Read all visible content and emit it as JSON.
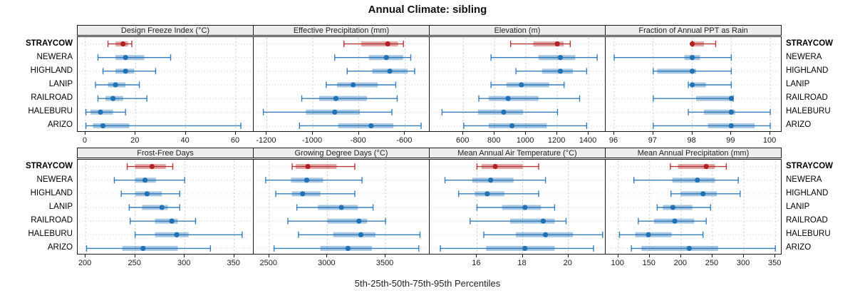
{
  "title": "Annual Climate: sibling",
  "caption": "5th-25th-50th-75th-95th Percentiles",
  "sites": [
    "STRAYCOW",
    "NEWERA",
    "HIGHLAND",
    "LANIP",
    "RAILROAD",
    "HALEBURU",
    "ARIZO"
  ],
  "highlight_site": "STRAYCOW",
  "colors": {
    "highlight": "#b22222",
    "normal": "#2171b5",
    "strip_bg": "#ededed",
    "panel_border": "#1a1a1a",
    "grid": "#c9c9c9"
  },
  "chart_data": {
    "type": "pointrange",
    "note": "each series values = [p5, p25, p50, p75, p95]",
    "legend_position": "none",
    "grid": true,
    "panels": [
      {
        "title": "Design Freeze Index (°C)",
        "xlim": [
          -3.1,
          67.1
        ],
        "ticks": [
          0,
          20,
          40,
          60
        ],
        "series": [
          {
            "name": "STRAYCOW",
            "values": [
              9,
              12,
              15,
              17,
              18.5
            ]
          },
          {
            "name": "NEWERA",
            "values": [
              5,
              12,
              16,
              23.5,
              34
            ]
          },
          {
            "name": "HIGHLAND",
            "values": [
              7,
              12,
              16,
              19.5,
              28
            ]
          },
          {
            "name": "LANIP",
            "values": [
              4,
              9,
              12,
              16,
              21.5
            ]
          },
          {
            "name": "RAILROAD",
            "values": [
              5,
              8,
              11,
              15,
              24.5
            ]
          },
          {
            "name": "HALEBURU",
            "values": [
              0.2,
              2,
              6,
              11,
              16
            ]
          },
          {
            "name": "ARIZO",
            "values": [
              0.2,
              3,
              7,
              17.5,
              62
            ]
          }
        ]
      },
      {
        "title": "Effective Precipitation (mm)",
        "xlim": [
          -1257,
          -493
        ],
        "ticks": [
          -1200,
          -1000,
          -800,
          -600
        ],
        "series": [
          {
            "name": "STRAYCOW",
            "values": [
              -865,
              -790,
              -675,
              -630,
              -607
            ]
          },
          {
            "name": "NEWERA",
            "values": [
              -905,
              -757,
              -681,
              -608,
              -575
            ]
          },
          {
            "name": "HIGHLAND",
            "values": [
              -851,
              -742,
              -666,
              -588,
              -558
            ]
          },
          {
            "name": "LANIP",
            "values": [
              -942,
              -895,
              -825,
              -718,
              -640
            ]
          },
          {
            "name": "RAILROAD",
            "values": [
              -1048,
              -973,
              -900,
              -765,
              -634
            ]
          },
          {
            "name": "HALEBURU",
            "values": [
              -1215,
              -1030,
              -905,
              -796,
              -657
            ]
          },
          {
            "name": "ARIZO",
            "values": [
              -1058,
              -890,
              -747,
              -650,
              -530
            ]
          }
        ]
      },
      {
        "title": "Elevation (m)",
        "xlim": [
          385,
          1509
        ],
        "ticks": [
          600,
          800,
          1000,
          1200,
          1400
        ],
        "series": [
          {
            "name": "STRAYCOW",
            "values": [
              902,
              1047,
              1200,
              1241,
              1283
            ]
          },
          {
            "name": "NEWERA",
            "values": [
              777,
              1080,
              1220,
              1315,
              1455
            ]
          },
          {
            "name": "HIGHLAND",
            "values": [
              936,
              1103,
              1220,
              1300,
              1388
            ]
          },
          {
            "name": "LANIP",
            "values": [
              777,
              876,
              971,
              1149,
              1244
            ]
          },
          {
            "name": "RAILROAD",
            "values": [
              699,
              762,
              886,
              1080,
              1343
            ]
          },
          {
            "name": "HALEBURU",
            "values": [
              464,
              694,
              858,
              982,
              1202
            ]
          },
          {
            "name": "ARIZO",
            "values": [
              603,
              762,
              911,
              1133,
              1388
            ]
          }
        ]
      },
      {
        "title": "Fraction of Annual PPT as Rain",
        "xlim": [
          95.78,
          100.29
        ],
        "ticks": [
          96,
          97,
          98,
          99,
          100
        ],
        "series": [
          {
            "name": "STRAYCOW",
            "values": [
              98,
              98,
              98,
              98.3,
              98.6
            ]
          },
          {
            "name": "NEWERA",
            "values": [
              96,
              97.8,
              98,
              98.2,
              99
            ]
          },
          {
            "name": "HIGHLAND",
            "values": [
              97,
              97.1,
              98,
              98.1,
              99
            ]
          },
          {
            "name": "LANIP",
            "values": [
              97.9,
              97.95,
              98,
              98.35,
              99
            ]
          },
          {
            "name": "RAILROAD",
            "values": [
              97,
              98.1,
              99,
              99.05,
              99.05
            ]
          },
          {
            "name": "HALEBURU",
            "values": [
              97.9,
              98.3,
              99,
              99.1,
              100
            ]
          },
          {
            "name": "ARIZO",
            "values": [
              97,
              98.4,
              99,
              99.6,
              100
            ]
          }
        ]
      },
      {
        "title": "Frost-Free Days",
        "xlim": [
          192,
          369.6
        ],
        "ticks": [
          200,
          250,
          300,
          350
        ],
        "series": [
          {
            "name": "STRAYCOW",
            "values": [
              242,
              250,
              267,
              281,
              288
            ]
          },
          {
            "name": "NEWERA",
            "values": [
              229,
              250,
              260,
              271,
              300
            ]
          },
          {
            "name": "HIGHLAND",
            "values": [
              236,
              250,
              262,
              277,
              295
            ]
          },
          {
            "name": "LANIP",
            "values": [
              244,
              257,
              277,
              283,
              295
            ]
          },
          {
            "name": "RAILROAD",
            "values": [
              245,
              270,
              287,
              293,
              311
            ]
          },
          {
            "name": "HALEBURU",
            "values": [
              250,
              270,
              292,
              304,
              358
            ]
          },
          {
            "name": "ARIZO",
            "values": [
              201,
              237,
              258,
              293,
              326
            ]
          }
        ]
      },
      {
        "title": "Growing Degree Days (°C)",
        "xlim": [
          2367,
          3879
        ],
        "ticks": [
          2500,
          3000,
          3500
        ],
        "series": [
          {
            "name": "STRAYCOW",
            "values": [
              2698,
              2728,
              2833,
              3080,
              3236
            ]
          },
          {
            "name": "NEWERA",
            "values": [
              2470,
              2688,
              2823,
              2964,
              3298
            ]
          },
          {
            "name": "HIGHLAND",
            "values": [
              2557,
              2694,
              2788,
              2940,
              3236
            ]
          },
          {
            "name": "LANIP",
            "values": [
              2738,
              2919,
              3121,
              3262,
              3393
            ]
          },
          {
            "name": "RAILROAD",
            "values": [
              2661,
              3000,
              3272,
              3343,
              3500
            ]
          },
          {
            "name": "HALEBURU",
            "values": [
              2752,
              3050,
              3288,
              3413,
              3796
            ]
          },
          {
            "name": "ARIZO",
            "values": [
              2542,
              2940,
              3177,
              3383,
              3786
            ]
          }
        ]
      },
      {
        "title": "Mean Annual Air Temperature (°C)",
        "xlim": [
          13.93,
          21.63
        ],
        "ticks": [
          16,
          18,
          20
        ],
        "series": [
          {
            "name": "STRAYCOW",
            "values": [
              16.0,
              16.2,
              16.8,
              18.0,
              18.7
            ]
          },
          {
            "name": "NEWERA",
            "values": [
              14.6,
              15.8,
              16.6,
              17.6,
              19.0
            ]
          },
          {
            "name": "HIGHLAND",
            "values": [
              15.2,
              15.9,
              16.45,
              17.2,
              18.7
            ]
          },
          {
            "name": "LANIP",
            "values": [
              16.0,
              17.1,
              18.1,
              18.8,
              19.4
            ]
          },
          {
            "name": "RAILROAD",
            "values": [
              15.7,
              17.45,
              18.9,
              19.4,
              19.9
            ]
          },
          {
            "name": "HALEBURU",
            "values": [
              16.3,
              17.7,
              19.0,
              20.2,
              21.5
            ]
          },
          {
            "name": "ARIZO",
            "values": [
              14.4,
              16.4,
              18.1,
              19.4,
              21.1
            ]
          }
        ]
      },
      {
        "title": "Mean Annual Precipitation (mm)",
        "xlim": [
          80,
          360
        ],
        "ticks": [
          100,
          150,
          200,
          250,
          300,
          350
        ],
        "series": [
          {
            "name": "STRAYCOW",
            "values": [
              183,
              195,
              240,
              254,
              272
            ]
          },
          {
            "name": "NEWERA",
            "values": [
              125,
              186,
              226,
              254,
              291
            ]
          },
          {
            "name": "HIGHLAND",
            "values": [
              184,
              199,
              235,
              257,
              294
            ]
          },
          {
            "name": "LANIP",
            "values": [
              162,
              171,
              187,
              218,
              247
            ]
          },
          {
            "name": "RAILROAD",
            "values": [
              132,
              157,
              190,
              221,
              240
            ]
          },
          {
            "name": "HALEBURU",
            "values": [
              102,
              127,
              148,
              185,
              235
            ]
          },
          {
            "name": "ARIZO",
            "values": [
              121,
              137,
              213,
              259,
              350
            ]
          }
        ]
      }
    ]
  }
}
